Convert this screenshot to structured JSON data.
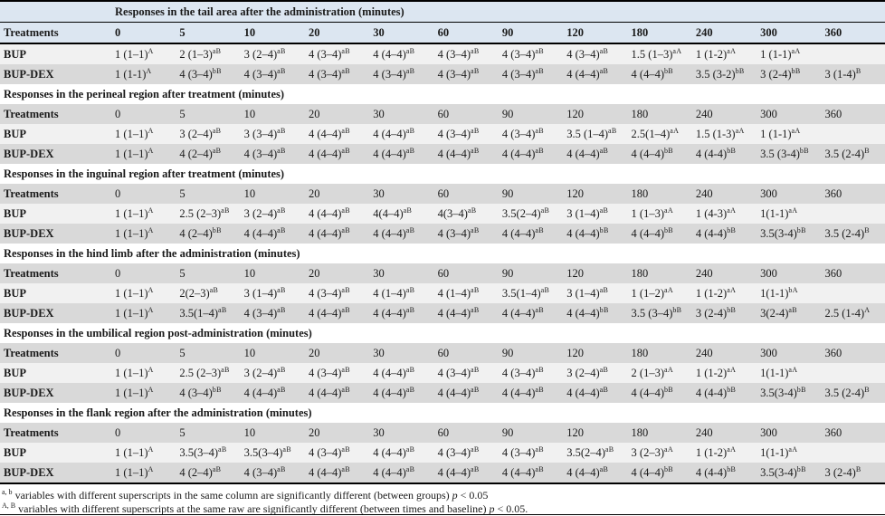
{
  "table": {
    "treatments_header": "Treatments",
    "time_columns": [
      "0",
      "5",
      "10",
      "20",
      "30",
      "60",
      "90",
      "120",
      "180",
      "240",
      "300",
      "360"
    ],
    "sections": [
      {
        "title": "Responses in the tail area after the administration (minutes)",
        "title_indented": true,
        "rows": [
          {
            "treatment": "BUP",
            "cells": [
              "1 (1–1)^A",
              "2 (1–3)^aB",
              "3 (2–4)^aB",
              "4 (3–4)^aB",
              "4 (4–4)^aB",
              "4 (3–4)^aB",
              "4 (3–4)^aB",
              "4 (3–4)^aB",
              "1.5 (1–3)^aA",
              "1 (1-2)^aA",
              "1 (1-1)^aA",
              ""
            ]
          },
          {
            "treatment": "BUP-DEX",
            "cells": [
              "1 (1-1)^A",
              "4 (3–4)^bB",
              "4 (3–4)^aB",
              "4 (3–4)^aB",
              "4 (3–4)^aB",
              "4 (3–4)^aB",
              "4 (3–4)^aB",
              "4 (4–4)^aB",
              "4 (4–4)^bB",
              "3.5 (3-2)^bB",
              "3 (2-4)^bB",
              "3 (1-4)^B"
            ]
          }
        ]
      },
      {
        "title": "Responses in the perineal region after treatment (minutes)",
        "title_indented": false,
        "rows": [
          {
            "treatment": "BUP",
            "cells": [
              "1 (1–1)^A",
              "3 (2–4)^aB",
              "3 (3–4)^aB",
              "4 (4–4)^aB",
              "4 (4–4)^aB",
              "4 (3–4)^aB",
              "4 (3–4)^aB",
              "3.5 (1–4)^aB",
              "2.5(1–4)^aA",
              "1.5 (1-3)^aA",
              "1 (1-1)^aA",
              ""
            ]
          },
          {
            "treatment": "BUP-DEX",
            "cells": [
              "1 (1–1)^A",
              "4 (2–4)^aB",
              "4 (3–4)^aB",
              "4 (4–4)^aB",
              "4 (4–4)^aB",
              "4 (4–4)^aB",
              "4 (4–4)^aB",
              "4 (4–4)^aB",
              "4 (4–4)^bB",
              "4 (4-4)^bB",
              "3.5 (3-4)^bB",
              "3.5 (2-4)^B"
            ]
          }
        ]
      },
      {
        "title": "Responses in the inguinal region after treatment (minutes)",
        "title_indented": false,
        "rows": [
          {
            "treatment": "BUP",
            "cells": [
              "1 (1–1)^A",
              "2.5 (2–3)^aB",
              "3 (2–4)^aB",
              "4 (4–4)^aB",
              "4(4–4)^aB",
              "4(3–4)^aB",
              "3.5(2–4)^aB",
              "3 (1–4)^aB",
              "1 (1–3)^aA",
              "1 (4-3)^aA",
              "1(1-1)^aA",
              ""
            ]
          },
          {
            "treatment": "BUP-DEX",
            "cells": [
              "1 (1–1)^A",
              "4 (2–4)^bB",
              "4 (4–4)^aB",
              "4 (4–4)^aB",
              "4 (4–4)^aB",
              "4 (3–4)^aB",
              "4 (4–4)^aB",
              "4 (4–4)^bB",
              "4 (4–4)^bB",
              "4 (4-4)^bB",
              "3.5(3-4)^bB",
              "3.5 (2-4)^B"
            ]
          }
        ]
      },
      {
        "title": "Responses in the hind limb after the administration (minutes)",
        "title_indented": false,
        "rows": [
          {
            "treatment": "BUP",
            "cells": [
              "1 (1–1)^A",
              "2(2–3)^aB",
              "3 (1–4)^aB",
              "4 (3–4)^aB",
              "4 (1–4)^aB",
              "4 (1–4)^aB",
              "3.5(1–4)^aB",
              "3 (1–4)^aB",
              "1 (1–2)^aA",
              "1 (1-2)^aA",
              "1(1-1)^bA",
              ""
            ]
          },
          {
            "treatment": "BUP-DEX",
            "cells": [
              "1 (1–1)^A",
              "3.5(1–4)^aB",
              "4 (3–4)^aB",
              "4 (4–4)^aB",
              "4 (4–4)^aB",
              "4 (4–4)^aB",
              "4 (4–4)^aB",
              "4 (4–4)^bB",
              "3.5 (3–4)^bB",
              "3 (2-4)^bB",
              "3(2-4)^aB",
              "2.5 (1-4)^A"
            ]
          }
        ]
      },
      {
        "title": "Responses in the umbilical region post-administration (minutes)",
        "title_indented": false,
        "rows": [
          {
            "treatment": "BUP",
            "cells": [
              "1 (1–1)^A",
              "2.5 (2–3)^aB",
              "3 (2–4)^aB",
              "4 (3–4)^aB",
              "4 (4–4)^aB",
              "4 (3–4)^aB",
              "4 (3–4)^aB",
              "3 (2–4)^aB",
              "2 (1–3)^aA",
              "1 (1-2)^aA",
              "1(1-1)^aA",
              ""
            ]
          },
          {
            "treatment": "BUP-DEX",
            "cells": [
              "1 (1–1)^A",
              "4 (3–4)^bB",
              "4 (4–4)^aB",
              "4 (4–4)^aB",
              "4 (4–4)^aB",
              "4 (4–4)^aB",
              "4 (4–4)^aB",
              "4 (4–4)^aB",
              "4 (4–4)^bB",
              "4 (4-4)^bB",
              "3.5(3-4)^bB",
              "3.5 (2-4)^B"
            ]
          }
        ]
      },
      {
        "title": "Responses in the flank region after the administration (minutes)",
        "title_indented": false,
        "rows": [
          {
            "treatment": "BUP",
            "cells": [
              "1 (1–1)^A",
              "3.5(3–4)^aB",
              "3.5(3–4)^aB",
              "4 (3–4)^aB",
              "4 (4–4)^aB",
              "4 (3–4)^aB",
              "4 (3–4)^aB",
              "3.5(2–4)^aB",
              "3 (2–3)^aA",
              "1 (1-2)^aA",
              "1(1-1)^aA",
              ""
            ]
          },
          {
            "treatment": "BUP-DEX",
            "cells": [
              "1 (1–1)^A",
              "4 (2–4)^aB",
              "4 (3–4)^aB",
              "4 (4–4)^aB",
              "4 (4–4)^aB",
              "4 (4–4)^aB",
              "4 (4–4)^aB",
              "4 (4–4)^aB",
              "4 (4–4)^bB",
              "4 (4-4)^bB",
              "3.5(3-4)^bB",
              "3 (2-4)^B"
            ]
          }
        ]
      }
    ],
    "footnotes": [
      {
        "sup": "a, b",
        "body": "variables with different superscripts in the same column are significantly different (between groups) ",
        "pvalue": "p < 0.05"
      },
      {
        "sup": "A, B",
        "body": "variables with different superscripts at the same raw are significantly different (between times and baseline) ",
        "pvalue": "p < 0.05."
      }
    ]
  }
}
